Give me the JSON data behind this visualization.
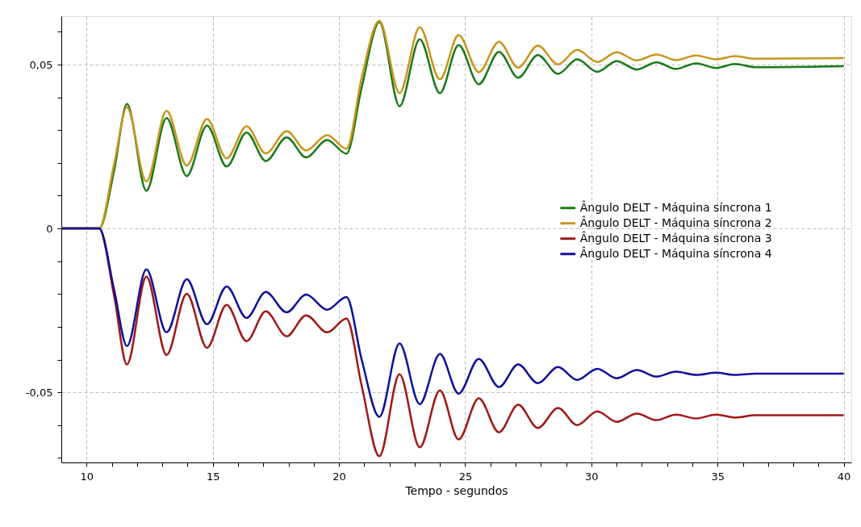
{
  "chart_data": {
    "type": "line",
    "xlabel": "Tempo - segundos",
    "x": [
      9.0,
      10.5,
      11.1,
      11.6,
      12.37,
      13.17,
      13.97,
      14.77,
      15.55,
      16.34,
      17.1,
      17.93,
      18.7,
      19.53,
      20.3,
      20.9,
      21.6,
      22.4,
      23.2,
      24.0,
      24.74,
      25.54,
      26.34,
      27.1,
      27.88,
      28.68,
      29.44,
      30.24,
      31.0,
      31.8,
      32.58,
      33.35,
      34.15,
      34.94,
      35.7,
      36.5,
      40.0
    ],
    "series": [
      {
        "name": "Ângulo DELT - Máquina síncrona 1",
        "color": "#1a7a1a",
        "values": [
          0,
          0,
          0.018,
          0.038,
          0.0115,
          0.0337,
          0.016,
          0.0314,
          0.0189,
          0.0293,
          0.0206,
          0.0278,
          0.0217,
          0.027,
          0.0228,
          0.043,
          0.063,
          0.0373,
          0.0577,
          0.0413,
          0.056,
          0.044,
          0.0539,
          0.046,
          0.0529,
          0.0472,
          0.0516,
          0.0478,
          0.0511,
          0.0485,
          0.0507,
          0.0487,
          0.0504,
          0.049,
          0.0502,
          0.0492,
          0.0495
        ]
      },
      {
        "name": "Ângulo DELT - Máquina síncrona 2",
        "color": "#c8961e",
        "values": [
          0,
          0,
          0.02,
          0.037,
          0.0143,
          0.0359,
          0.0192,
          0.0334,
          0.0214,
          0.0312,
          0.0229,
          0.0297,
          0.0238,
          0.0285,
          0.0243,
          0.046,
          0.0634,
          0.0413,
          0.0614,
          0.0455,
          0.059,
          0.0477,
          0.057,
          0.0491,
          0.0558,
          0.0501,
          0.0545,
          0.0508,
          0.0538,
          0.0513,
          0.0531,
          0.0514,
          0.0528,
          0.0516,
          0.0526,
          0.0518,
          0.052
        ]
      },
      {
        "name": "Ângulo DELT - Máquina síncrona 3",
        "color": "#a01818",
        "values": [
          0,
          0,
          -0.021,
          -0.0415,
          -0.0147,
          -0.0386,
          -0.0199,
          -0.0364,
          -0.0233,
          -0.0344,
          -0.0253,
          -0.0329,
          -0.0265,
          -0.0317,
          -0.0275,
          -0.048,
          -0.0695,
          -0.0445,
          -0.0668,
          -0.0494,
          -0.0644,
          -0.0518,
          -0.0622,
          -0.0538,
          -0.0609,
          -0.0548,
          -0.06,
          -0.0558,
          -0.059,
          -0.0565,
          -0.0585,
          -0.0568,
          -0.058,
          -0.0568,
          -0.0577,
          -0.057,
          -0.057
        ]
      },
      {
        "name": "Ângulo DELT - Máquina síncrona 4",
        "color": "#10109a",
        "values": [
          0,
          0,
          -0.019,
          -0.0359,
          -0.0125,
          -0.0317,
          -0.0155,
          -0.0292,
          -0.0177,
          -0.0273,
          -0.0194,
          -0.0256,
          -0.0202,
          -0.0248,
          -0.0209,
          -0.04,
          -0.0575,
          -0.0351,
          -0.0536,
          -0.0383,
          -0.0504,
          -0.0398,
          -0.0484,
          -0.0415,
          -0.0472,
          -0.0423,
          -0.0462,
          -0.0428,
          -0.0457,
          -0.0432,
          -0.0452,
          -0.0437,
          -0.0447,
          -0.044,
          -0.0447,
          -0.0443,
          -0.0443
        ]
      }
    ],
    "xlim": [
      9.0,
      40.3
    ],
    "xticks": [
      10,
      {
        "value": 11,
        "label": null
      },
      {
        "value": 12,
        "label": null
      },
      {
        "value": 13,
        "label": null
      },
      {
        "value": 14,
        "label": null
      },
      15,
      {
        "value": 16,
        "label": null
      },
      {
        "value": 17,
        "label": null
      },
      {
        "value": 18,
        "label": null
      },
      {
        "value": 19,
        "label": null
      },
      20,
      {
        "value": 21,
        "label": null
      },
      {
        "value": 22,
        "label": null
      },
      {
        "value": 23,
        "label": null
      },
      {
        "value": 24,
        "label": null
      },
      25,
      {
        "value": 26,
        "label": null
      },
      {
        "value": 27,
        "label": null
      },
      {
        "value": 28,
        "label": null
      },
      {
        "value": 29,
        "label": null
      },
      30,
      {
        "value": 31,
        "label": null
      },
      {
        "value": 32,
        "label": null
      },
      {
        "value": 33,
        "label": null
      },
      {
        "value": 34,
        "label": null
      },
      35,
      {
        "value": 36,
        "label": null
      },
      {
        "value": 37,
        "label": null
      },
      {
        "value": 38,
        "label": null
      },
      {
        "value": 39,
        "label": null
      },
      40
    ],
    "ylim": [
      -0.0714,
      0.0648
    ],
    "yticks": [
      {
        "value": 0.06,
        "label": null
      },
      {
        "value": 0.05,
        "label": "0,05"
      },
      {
        "value": 0.04,
        "label": null
      },
      {
        "value": 0.03,
        "label": null
      },
      {
        "value": 0.02,
        "label": null
      },
      {
        "value": 0.01,
        "label": null
      },
      0,
      {
        "value": -0.01,
        "label": null
      },
      {
        "value": -0.02,
        "label": null
      },
      {
        "value": -0.03,
        "label": null
      },
      {
        "value": -0.04,
        "label": null
      },
      {
        "value": -0.05,
        "label": "-0,05"
      },
      {
        "value": -0.06,
        "label": null
      },
      {
        "value": -0.07,
        "label": null
      }
    ],
    "grid": true,
    "legend": "right",
    "line_style": "solid",
    "marker": "none"
  }
}
